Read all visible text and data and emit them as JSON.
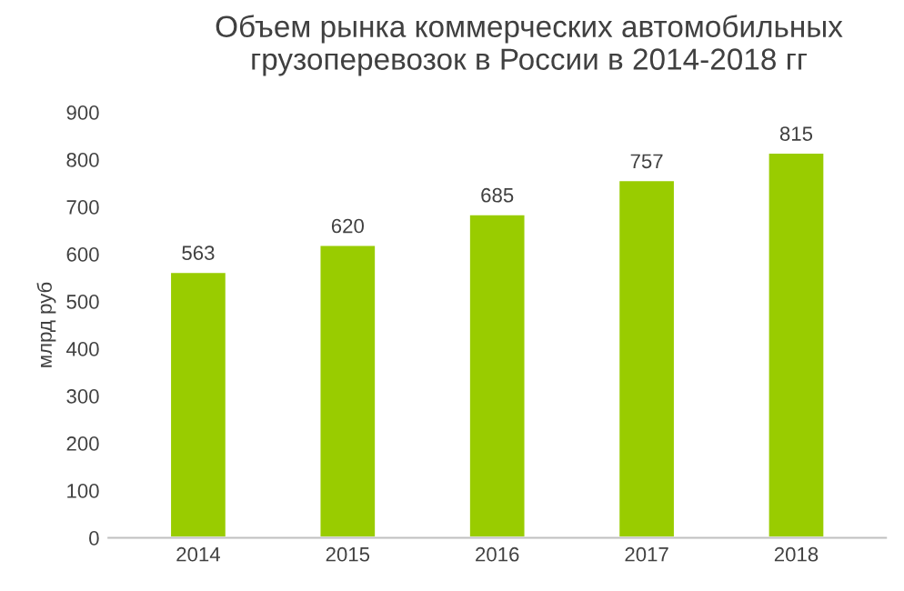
{
  "chart_data": {
    "type": "bar",
    "title": "Объем рынка коммерческих автомобильных\nгрузоперевозок в России в 2014-2018 гг",
    "ylabel": "млрд руб",
    "categories": [
      "2014",
      "2015",
      "2016",
      "2017",
      "2018"
    ],
    "values": [
      563,
      620,
      685,
      757,
      815
    ],
    "color": "#99cc00",
    "ylim": [
      0,
      900
    ],
    "yticks": [
      0,
      100,
      200,
      300,
      400,
      500,
      600,
      700,
      800,
      900
    ],
    "grid": false,
    "data_labels": true
  }
}
